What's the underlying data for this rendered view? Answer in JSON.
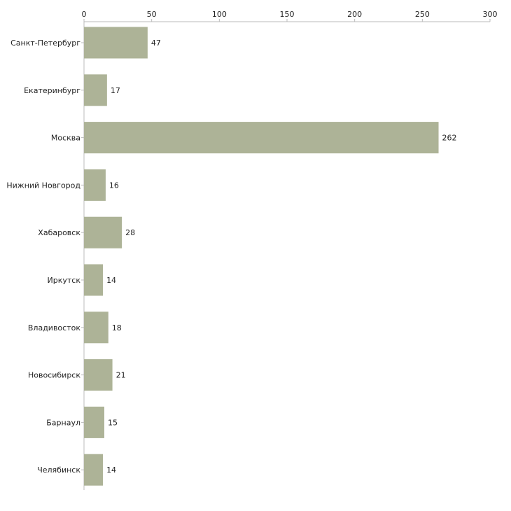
{
  "chart_data": {
    "type": "bar",
    "orientation": "horizontal",
    "title": "",
    "xlabel": "",
    "ylabel": "",
    "xlim": [
      0,
      300
    ],
    "x_ticks": [
      0,
      50,
      100,
      150,
      200,
      250,
      300
    ],
    "axis_position": "top",
    "grid": false,
    "categories": [
      "Санкт-Петербург",
      "Екатеринбург",
      "Москва",
      "Нижний Новгород",
      "Хабаровск",
      "Иркутск",
      "Владивосток",
      "Новосибирск",
      "Барнаул",
      "Челябинск"
    ],
    "values": [
      47,
      17,
      262,
      16,
      28,
      14,
      18,
      21,
      15,
      14
    ],
    "bar_color": "#adb397",
    "axis_color": "#bbbbbb"
  }
}
